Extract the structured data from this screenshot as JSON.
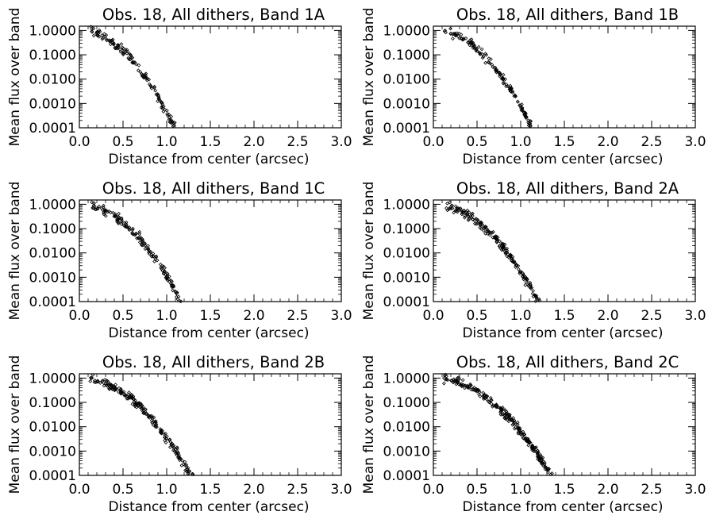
{
  "chart_data": [
    {
      "type": "scatter",
      "title": "Obs. 18, All dithers, Band 1A",
      "xlabel": "Distance from center (arcsec)",
      "ylabel": "Mean flux over band",
      "xlim": [
        0,
        3
      ],
      "ylim": [
        0.0001,
        1.5
      ],
      "yscale": "log",
      "xticks": [
        "0.0",
        "0.5",
        "1.0",
        "1.5",
        "2.0",
        "2.5",
        "3.0"
      ],
      "yticks": [
        "1.0000",
        "0.1000",
        "0.0100",
        "0.0010",
        "0.0001"
      ],
      "profile": {
        "fwhm": 0.6,
        "knee": 1.2,
        "tail_slope": 0.75,
        "spread_start": 1.15,
        "xmax": 2.3
      },
      "n_points": 380,
      "grid": false,
      "legend": "none"
    },
    {
      "type": "scatter",
      "title": "Obs. 18, All dithers, Band 1B",
      "xlabel": "Distance from center (arcsec)",
      "ylabel": "Mean flux over band",
      "xlim": [
        0,
        3
      ],
      "ylim": [
        0.0001,
        1.5
      ],
      "yscale": "log",
      "xticks": [
        "0.0",
        "0.5",
        "1.0",
        "1.5",
        "2.0",
        "2.5",
        "3.0"
      ],
      "yticks": [
        "1.0000",
        "0.1000",
        "0.0100",
        "0.0010",
        "0.0001"
      ],
      "profile": {
        "fwhm": 0.62,
        "knee": 1.3,
        "tail_slope": 0.65,
        "spread_start": 1.3,
        "xmax": 2.85
      },
      "n_points": 480,
      "grid": false,
      "legend": "none"
    },
    {
      "type": "scatter",
      "title": "Obs. 18, All dithers, Band 1C",
      "xlabel": "Distance from center (arcsec)",
      "ylabel": "Mean flux over band",
      "xlim": [
        0,
        3
      ],
      "ylim": [
        0.0001,
        1.5
      ],
      "yscale": "log",
      "xticks": [
        "0.0",
        "0.5",
        "1.0",
        "1.5",
        "2.0",
        "2.5",
        "3.0"
      ],
      "yticks": [
        "1.0000",
        "0.1000",
        "0.0100",
        "0.0010",
        "0.0001"
      ],
      "profile": {
        "fwhm": 0.64,
        "knee": 1.3,
        "tail_slope": 0.55,
        "spread_start": 1.6,
        "xmax": 2.95
      },
      "n_points": 520,
      "grid": false,
      "legend": "none"
    },
    {
      "type": "scatter",
      "title": "Obs. 18, All dithers, Band 2A",
      "xlabel": "Distance from center (arcsec)",
      "ylabel": "Mean flux over band",
      "xlim": [
        0,
        3
      ],
      "ylim": [
        0.0001,
        1.5
      ],
      "yscale": "log",
      "xticks": [
        "0.0",
        "0.5",
        "1.0",
        "1.5",
        "2.0",
        "2.5",
        "3.0"
      ],
      "yticks": [
        "1.0000",
        "0.1000",
        "0.0100",
        "0.0010",
        "0.0001"
      ],
      "profile": {
        "fwhm": 0.66,
        "knee": 1.35,
        "tail_slope": 0.55,
        "spread_start": 1.75,
        "xmax": 3.0
      },
      "n_points": 600,
      "grid": false,
      "legend": "none"
    },
    {
      "type": "scatter",
      "title": "Obs. 18, All dithers, Band 2B",
      "xlabel": "Distance from center (arcsec)",
      "ylabel": "Mean flux over band",
      "xlim": [
        0,
        3
      ],
      "ylim": [
        0.0001,
        1.5
      ],
      "yscale": "log",
      "xticks": [
        "0.0",
        "0.5",
        "1.0",
        "1.5",
        "2.0",
        "2.5",
        "3.0"
      ],
      "yticks": [
        "1.0000",
        "0.1000",
        "0.0100",
        "0.0010",
        "0.0001"
      ],
      "profile": {
        "fwhm": 0.7,
        "knee": 1.45,
        "tail_slope": 0.35,
        "spread_start": 2.05,
        "xmax": 3.0
      },
      "n_points": 620,
      "grid": false,
      "legend": "none"
    },
    {
      "type": "scatter",
      "title": "Obs. 18, All dithers, Band 2C",
      "xlabel": "Distance from center (arcsec)",
      "ylabel": "Mean flux over band",
      "xlim": [
        0,
        3
      ],
      "ylim": [
        0.0001,
        1.5
      ],
      "yscale": "log",
      "xticks": [
        "0.0",
        "0.5",
        "1.0",
        "1.5",
        "2.0",
        "2.5",
        "3.0"
      ],
      "yticks": [
        "1.0000",
        "0.1000",
        "0.0100",
        "0.0010",
        "0.0001"
      ],
      "profile": {
        "fwhm": 0.74,
        "knee": 1.55,
        "tail_slope": 0.22,
        "spread_start": 2.15,
        "xmax": 3.0
      },
      "n_points": 640,
      "grid": false,
      "legend": "none"
    }
  ]
}
